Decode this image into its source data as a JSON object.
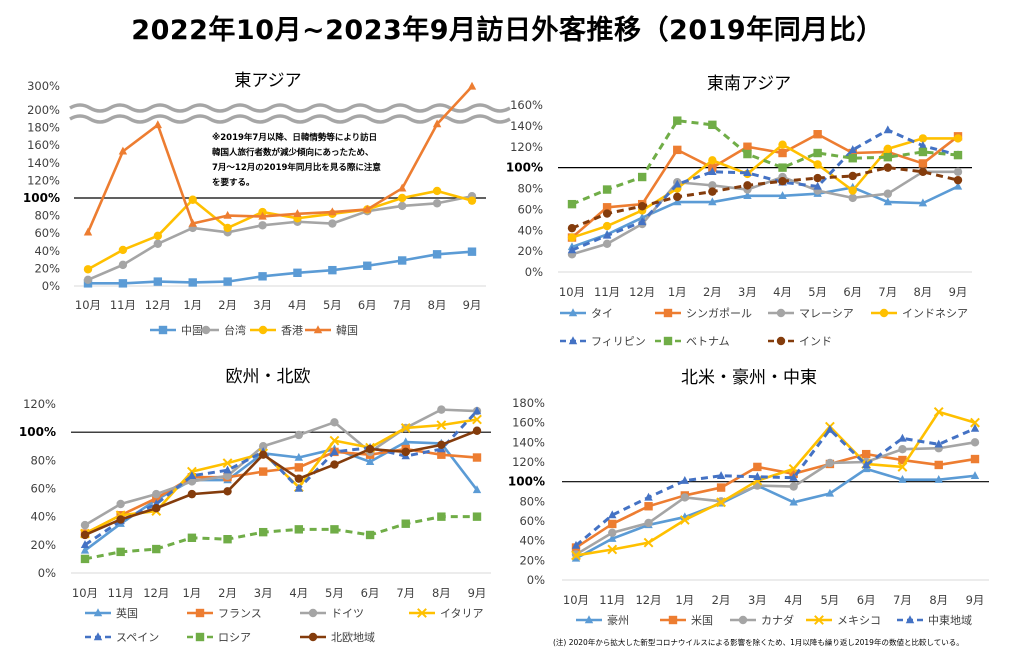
{
  "title": "2022年10月~2023年9月訪日外客推移（2019年同月比）",
  "footnote": "(注) 2020年から拡大した新型コロナウイルスによる影響を除くため、1月以降も繰り返し2019年の数値と比較している。",
  "chart_data": [
    {
      "type": "line",
      "title": "東アジア",
      "categories": [
        "10月",
        "11月",
        "12月",
        "1月",
        "2月",
        "3月",
        "4月",
        "5月",
        "6月",
        "7月",
        "8月",
        "9月"
      ],
      "y_ticks": [
        "0%",
        "20%",
        "40%",
        "60%",
        "80%",
        "100%",
        "120%",
        "140%",
        "160%",
        "180%",
        "200%",
        "300%"
      ],
      "ylim": [
        0,
        300
      ],
      "axis_break": [
        190,
        290
      ],
      "reference_line": 100,
      "annotation": [
        "※2019年7月以降、日韓情勢等により訪日",
        "韓国人旅行者数が減少傾向にあったため、",
        "7月～12月の2019年同月比を見る際に注意",
        "を要する。"
      ],
      "series": [
        {
          "name": "中国",
          "color": "#5b9bd5",
          "marker": "square",
          "dash": false,
          "values": [
            3,
            3,
            5,
            4,
            5,
            11,
            15,
            18,
            23,
            29,
            36,
            39
          ]
        },
        {
          "name": "台湾",
          "color": "#a5a5a5",
          "marker": "circle",
          "dash": false,
          "values": [
            7,
            24,
            48,
            66,
            61,
            69,
            73,
            71,
            85,
            91,
            94,
            102
          ]
        },
        {
          "name": "香港",
          "color": "#ffc000",
          "marker": "circle",
          "dash": false,
          "values": [
            19,
            41,
            57,
            98,
            66,
            84,
            77,
            82,
            87,
            100,
            108,
            97
          ]
        },
        {
          "name": "韓国",
          "color": "#ed7d31",
          "marker": "triangle",
          "dash": false,
          "values": [
            61,
            153,
            183,
            71,
            80,
            79,
            82,
            84,
            87,
            111,
            184,
            298
          ]
        }
      ]
    },
    {
      "type": "line",
      "title": "東南アジア",
      "categories": [
        "10月",
        "11月",
        "12月",
        "1月",
        "2月",
        "3月",
        "4月",
        "5月",
        "6月",
        "7月",
        "8月",
        "9月"
      ],
      "y_ticks": [
        "0%",
        "20%",
        "40%",
        "60%",
        "80%",
        "100%",
        "120%",
        "140%",
        "160%"
      ],
      "ylim": [
        0,
        160
      ],
      "reference_line": 100,
      "series": [
        {
          "name": "タイ",
          "color": "#5b9bd5",
          "marker": "triangle",
          "dash": false,
          "values": [
            24,
            36,
            52,
            67,
            67,
            73,
            73,
            75,
            81,
            67,
            66,
            82
          ]
        },
        {
          "name": "シンガポール",
          "color": "#ed7d31",
          "marker": "square",
          "dash": false,
          "values": [
            33,
            62,
            65,
            117,
            100,
            120,
            114,
            132,
            114,
            115,
            104,
            130
          ]
        },
        {
          "name": "マレーシア",
          "color": "#a5a5a5",
          "marker": "circle",
          "dash": false,
          "values": [
            17,
            27,
            46,
            86,
            83,
            79,
            91,
            78,
            71,
            75,
            96,
            96
          ]
        },
        {
          "name": "インドネシア",
          "color": "#ffc000",
          "marker": "circle",
          "dash": false,
          "values": [
            33,
            44,
            59,
            80,
            107,
            94,
            122,
            103,
            78,
            118,
            128,
            128
          ]
        },
        {
          "name": "フィリピン",
          "color": "#4472c4",
          "marker": "triangle",
          "dash": true,
          "values": [
            21,
            35,
            48,
            84,
            96,
            95,
            86,
            82,
            117,
            136,
            121,
            112
          ]
        },
        {
          "name": "ベトナム",
          "color": "#70ad47",
          "marker": "square",
          "dash": true,
          "values": [
            65,
            79,
            91,
            145,
            141,
            113,
            100,
            114,
            109,
            110,
            115,
            112
          ]
        },
        {
          "name": "インド",
          "color": "#843c0c",
          "marker": "circle",
          "dash": true,
          "values": [
            42,
            56,
            63,
            72,
            77,
            83,
            87,
            90,
            92,
            100,
            96,
            88
          ]
        }
      ]
    },
    {
      "type": "line",
      "title": "欧州・北欧",
      "categories": [
        "10月",
        "11月",
        "12月",
        "1月",
        "2月",
        "3月",
        "4月",
        "5月",
        "6月",
        "7月",
        "8月",
        "9月"
      ],
      "y_ticks": [
        "0%",
        "20%",
        "40%",
        "60%",
        "80%",
        "100%",
        "120%"
      ],
      "ylim": [
        0,
        120
      ],
      "reference_line": 100,
      "series": [
        {
          "name": "英国",
          "color": "#5b9bd5",
          "marker": "triangle",
          "dash": false,
          "values": [
            16,
            35,
            52,
            66,
            66,
            85,
            82,
            88,
            79,
            93,
            92,
            59
          ]
        },
        {
          "name": "フランス",
          "color": "#ed7d31",
          "marker": "square",
          "dash": false,
          "values": [
            28,
            41,
            53,
            68,
            68,
            72,
            75,
            86,
            84,
            88,
            84,
            82
          ]
        },
        {
          "name": "ドイツ",
          "color": "#a5a5a5",
          "marker": "circle",
          "dash": false,
          "values": [
            34,
            49,
            56,
            65,
            69,
            90,
            98,
            107,
            86,
            103,
            116,
            115
          ]
        },
        {
          "name": "イタリア",
          "color": "#ffc000",
          "marker": "cross",
          "dash": false,
          "values": [
            28,
            41,
            44,
            72,
            78,
            85,
            61,
            94,
            89,
            103,
            105,
            109
          ]
        },
        {
          "name": "スペイン",
          "color": "#4472c4",
          "marker": "triangle",
          "dash": true,
          "values": [
            20,
            37,
            49,
            69,
            73,
            86,
            60,
            86,
            89,
            83,
            88,
            115
          ]
        },
        {
          "name": "ロシア",
          "color": "#70ad47",
          "marker": "square",
          "dash": true,
          "values": [
            10,
            15,
            17,
            25,
            24,
            29,
            31,
            31,
            27,
            35,
            40,
            40
          ]
        },
        {
          "name": "北欧地域",
          "color": "#843c0c",
          "marker": "circle",
          "dash": false,
          "values": [
            27,
            38,
            46,
            56,
            58,
            84,
            67,
            77,
            88,
            86,
            91,
            101
          ]
        }
      ]
    },
    {
      "type": "line",
      "title": "北米・豪州・中東",
      "categories": [
        "10月",
        "11月",
        "12月",
        "1月",
        "2月",
        "3月",
        "4月",
        "5月",
        "6月",
        "7月",
        "8月",
        "9月"
      ],
      "y_ticks": [
        "0%",
        "20%",
        "40%",
        "60%",
        "80%",
        "100%",
        "120%",
        "140%",
        "160%",
        "180%"
      ],
      "ylim": [
        0,
        180
      ],
      "reference_line": 100,
      "series": [
        {
          "name": "豪州",
          "color": "#5b9bd5",
          "marker": "triangle",
          "dash": false,
          "values": [
            22,
            42,
            56,
            64,
            78,
            96,
            79,
            88,
            113,
            102,
            102,
            106
          ]
        },
        {
          "name": "米国",
          "color": "#ed7d31",
          "marker": "square",
          "dash": false,
          "values": [
            33,
            57,
            75,
            86,
            94,
            115,
            108,
            118,
            128,
            122,
            117,
            123
          ]
        },
        {
          "name": "カナダ",
          "color": "#a5a5a5",
          "marker": "circle",
          "dash": false,
          "values": [
            26,
            48,
            58,
            84,
            80,
            96,
            95,
            119,
            120,
            133,
            134,
            140
          ]
        },
        {
          "name": "メキシコ",
          "color": "#ffc000",
          "marker": "cross",
          "dash": false,
          "values": [
            25,
            31,
            38,
            61,
            79,
            101,
            113,
            156,
            118,
            115,
            171,
            160
          ]
        },
        {
          "name": "中東地域",
          "color": "#4472c4",
          "marker": "triangle",
          "dash": true,
          "values": [
            35,
            66,
            84,
            101,
            106,
            105,
            104,
            153,
            117,
            144,
            138,
            154
          ]
        }
      ]
    }
  ]
}
